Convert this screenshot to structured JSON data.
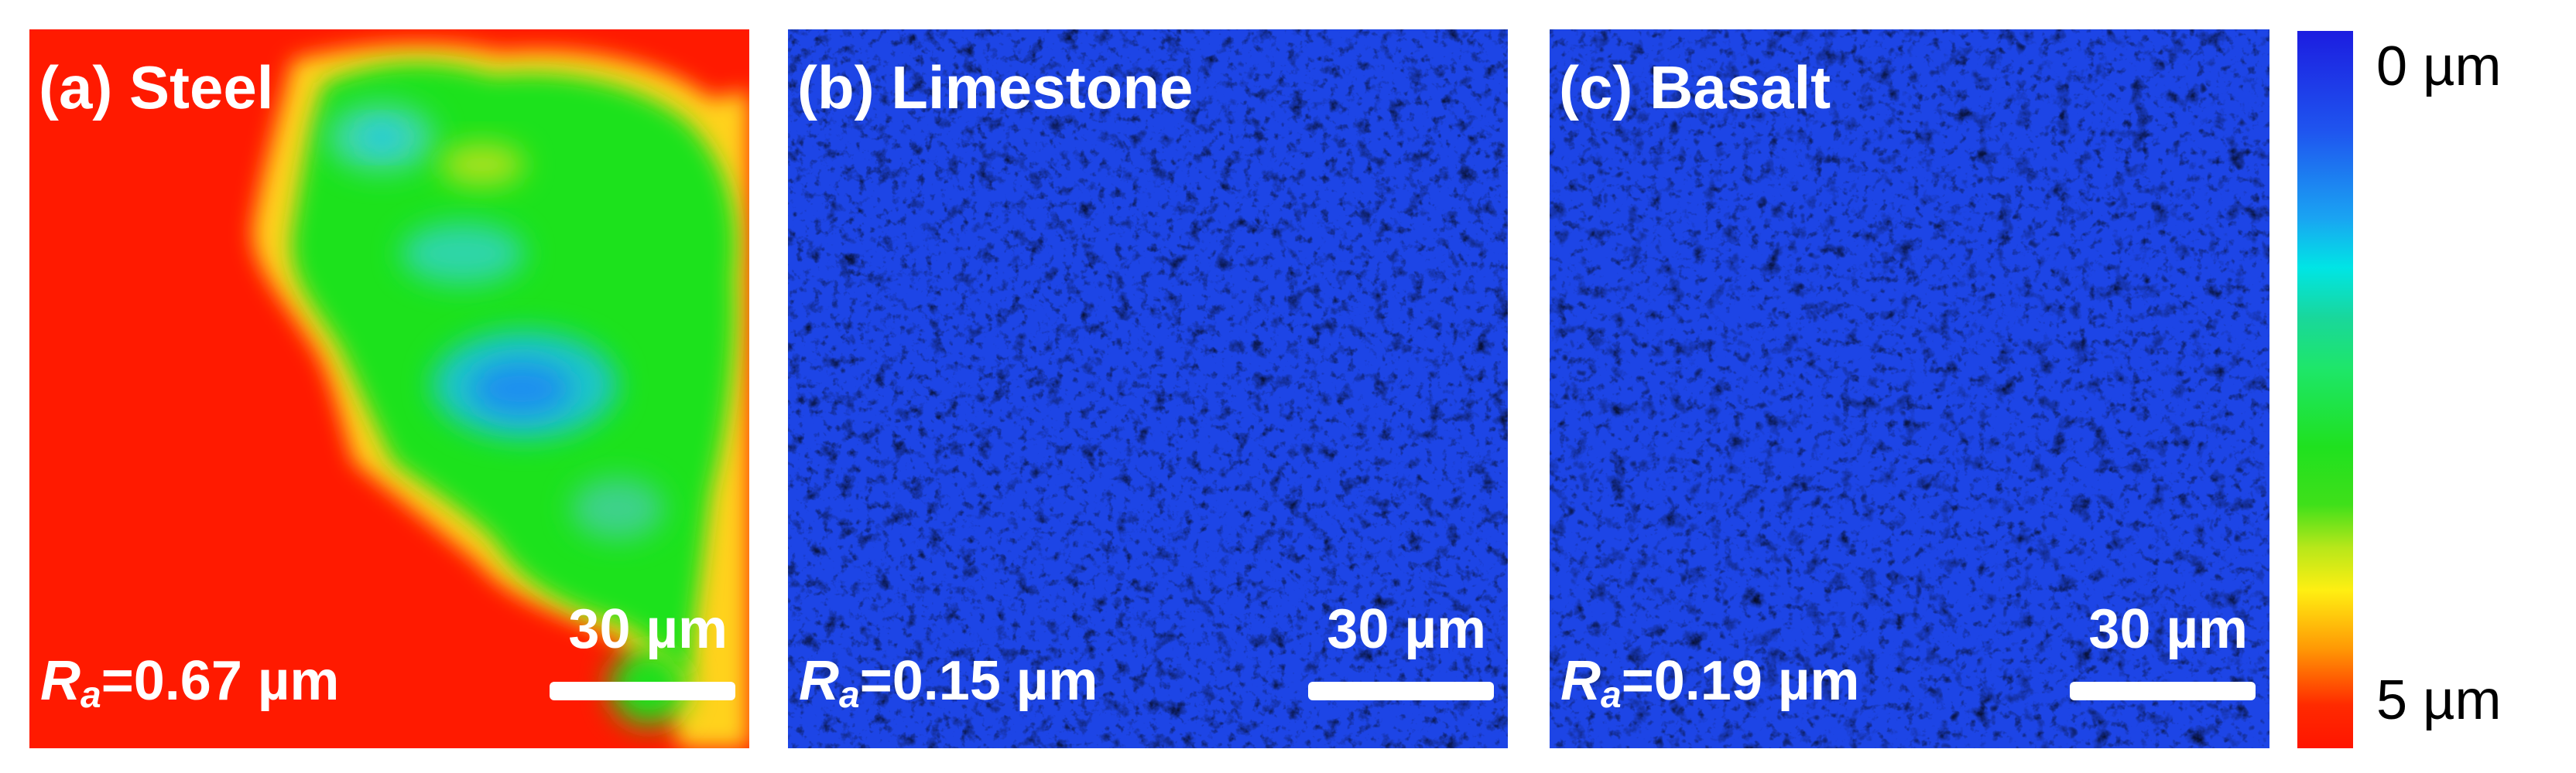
{
  "panels": {
    "a": {
      "label": "(a) Steel",
      "ra_symbol": "R",
      "ra_sub": "a",
      "ra_value": "=0.67 µm",
      "scale_label": "30 µm"
    },
    "b": {
      "label": "(b) Limestone",
      "ra_symbol": "R",
      "ra_sub": "a",
      "ra_value": "=0.15 µm",
      "scale_label": "30 µm"
    },
    "c": {
      "label": "(c) Basalt",
      "ra_symbol": "R",
      "ra_sub": "a",
      "ra_value": "=0.19 µm",
      "scale_label": "30 µm"
    }
  },
  "colorbar": {
    "top_label": "0 µm",
    "bottom_label": "5 µm",
    "colors": [
      "#1c1de0",
      "#00e5e5",
      "#1fe11f",
      "#ffef12",
      "#ff1500"
    ]
  }
}
